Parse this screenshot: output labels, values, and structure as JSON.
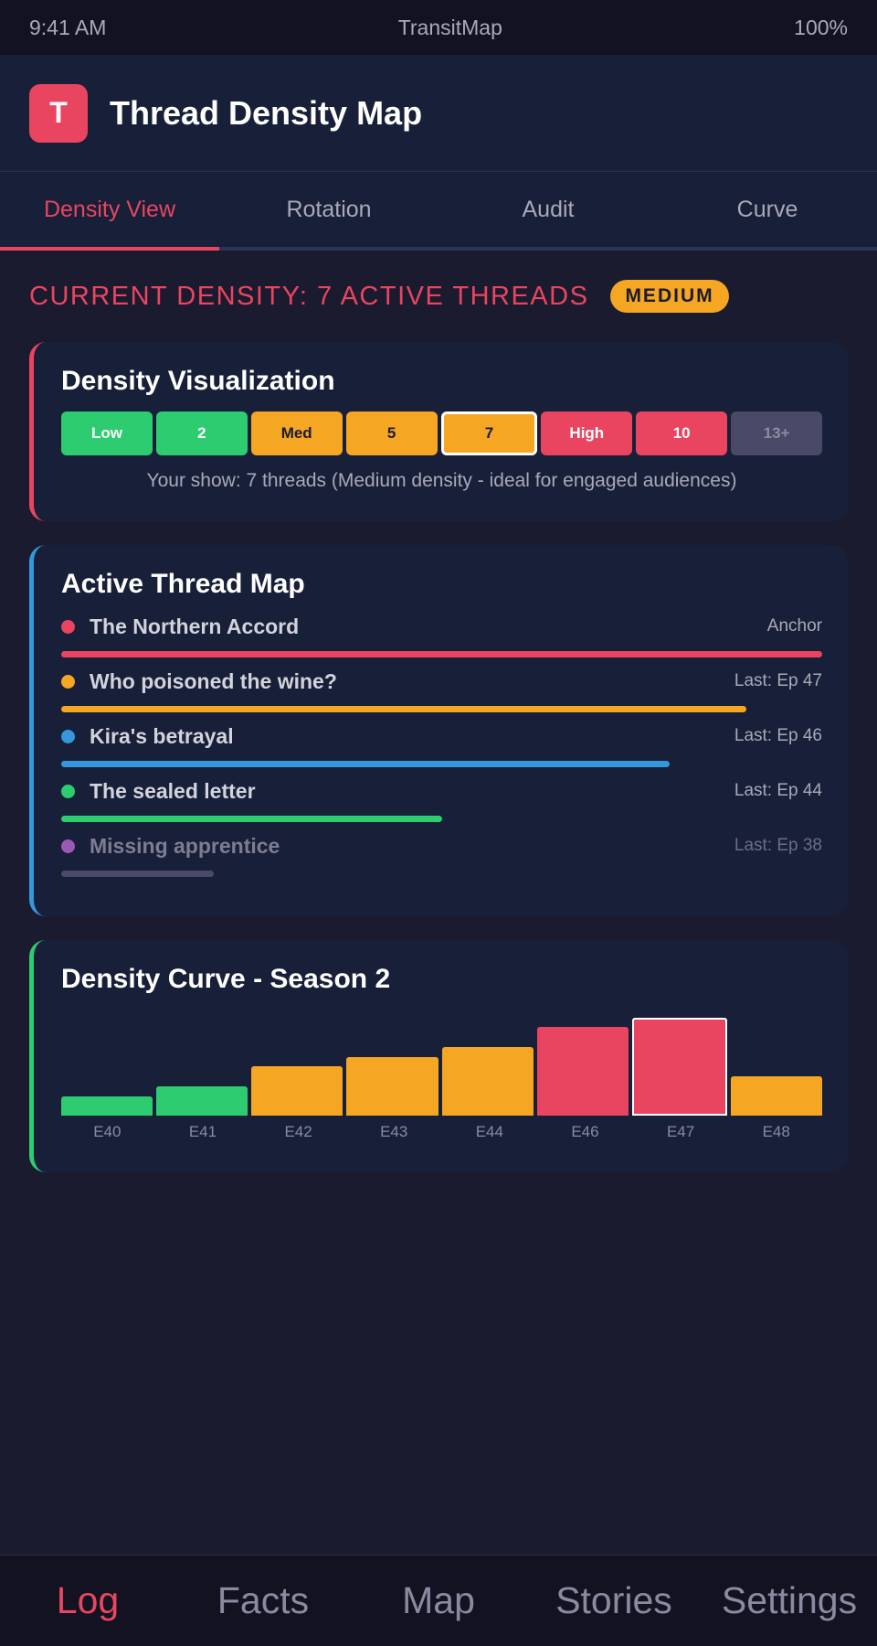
{
  "status_bar": {
    "time": "9:41 AM",
    "app_name": "TransitMap",
    "battery": "100%"
  },
  "header": {
    "logo_letter": "T",
    "title": "Thread Density Map"
  },
  "tabs": [
    {
      "label": "Density View",
      "active": true
    },
    {
      "label": "Rotation",
      "active": false
    },
    {
      "label": "Audit",
      "active": false
    },
    {
      "label": "Curve",
      "active": false
    }
  ],
  "density": {
    "heading": "CURRENT DENSITY: 7 ACTIVE THREADS",
    "badge": "MEDIUM"
  },
  "visualization": {
    "title": "Density Visualization",
    "scale": [
      {
        "label": "Low",
        "level": "green"
      },
      {
        "label": "2",
        "level": "green"
      },
      {
        "label": "Med",
        "level": "orange"
      },
      {
        "label": "5",
        "level": "orange"
      },
      {
        "label": "7",
        "level": "orange",
        "current": true
      },
      {
        "label": "High",
        "level": "red"
      },
      {
        "label": "10",
        "level": "red"
      },
      {
        "label": "13+",
        "level": "gray"
      }
    ],
    "note": "Your show: 7 threads (Medium density - ideal for engaged audiences)"
  },
  "thread_map": {
    "title": "Active Thread Map",
    "threads": [
      {
        "name": "The Northern Accord",
        "meta": "Anchor",
        "color": "#e94560",
        "strength": 1.0,
        "faded": false
      },
      {
        "name": "Who poisoned the wine?",
        "meta": "Last: Ep 47",
        "color": "#f5a623",
        "strength": 0.9,
        "faded": false
      },
      {
        "name": "Kira's betrayal",
        "meta": "Last: Ep 46",
        "color": "#3498db",
        "strength": 0.8,
        "faded": false
      },
      {
        "name": "The sealed letter",
        "meta": "Last: Ep 44",
        "color": "#2ecc71",
        "strength": 0.5,
        "faded": false
      },
      {
        "name": "Missing apprentice",
        "meta": "Last: Ep 38",
        "color": "#9b59b6",
        "bar_color": "#4a4a68",
        "strength": 0.2,
        "faded": true
      }
    ]
  },
  "curve": {
    "title": "Density Curve - Season 2",
    "chart_data": {
      "type": "bar",
      "categories": [
        "E40",
        "E41",
        "E42",
        "E43",
        "E44",
        "E46",
        "E47",
        "E48"
      ],
      "values": [
        2,
        3,
        5,
        6,
        7,
        9,
        10,
        4
      ],
      "colors": [
        "#2ecc71",
        "#2ecc71",
        "#f5a623",
        "#f5a623",
        "#f5a623",
        "#e94560",
        "#e94560",
        "#f5a623"
      ],
      "highlight": "E47",
      "ylim": [
        0,
        11
      ]
    }
  },
  "bottom_nav": [
    {
      "label": "Log",
      "active": true
    },
    {
      "label": "Facts",
      "active": false
    },
    {
      "label": "Map",
      "active": false
    },
    {
      "label": "Stories",
      "active": false
    },
    {
      "label": "Settings",
      "active": false
    }
  ]
}
